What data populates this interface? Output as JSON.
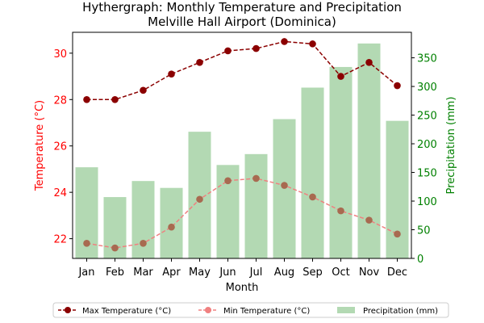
{
  "chart_data": {
    "type": "bar+line",
    "title": "Hythergraph: Monthly Temperature and Precipitation",
    "subtitle": "Melville Hall Airport (Dominica)",
    "xlabel": "Month",
    "ylabel_left": "Temperature (°C)",
    "ylabel_right": "Precipitation (mm)",
    "categories": [
      "Jan",
      "Feb",
      "Mar",
      "Apr",
      "May",
      "Jun",
      "Jul",
      "Aug",
      "Sep",
      "Oct",
      "Nov",
      "Dec"
    ],
    "y_left_lim": [
      21.15,
      30.9
    ],
    "y_left_ticks": [
      22,
      24,
      26,
      28,
      30
    ],
    "y_right_lim": [
      0,
      394.5
    ],
    "y_right_ticks": [
      0,
      50,
      100,
      150,
      200,
      250,
      300,
      350
    ],
    "grid": false,
    "legend_position": "bottom-center",
    "series": [
      {
        "name": "Max Temperature (°C)",
        "kind": "line",
        "axis": "left",
        "color": "#8b0000",
        "values": [
          28.0,
          28.0,
          28.4,
          29.1,
          29.6,
          30.1,
          30.2,
          30.5,
          30.4,
          29.0,
          29.6,
          28.6
        ]
      },
      {
        "name": "Min Temperature (°C)",
        "kind": "line",
        "axis": "left",
        "color": "#f08080",
        "values": [
          21.8,
          21.6,
          21.8,
          22.5,
          23.7,
          24.5,
          24.6,
          24.3,
          23.8,
          23.2,
          22.8,
          22.2
        ]
      },
      {
        "name": "Precipitation (mm)",
        "kind": "bar",
        "axis": "right",
        "color": "#b3d9b3",
        "values": [
          159,
          107,
          135,
          123,
          221,
          163,
          182,
          243,
          298,
          334,
          375,
          240
        ]
      }
    ]
  }
}
